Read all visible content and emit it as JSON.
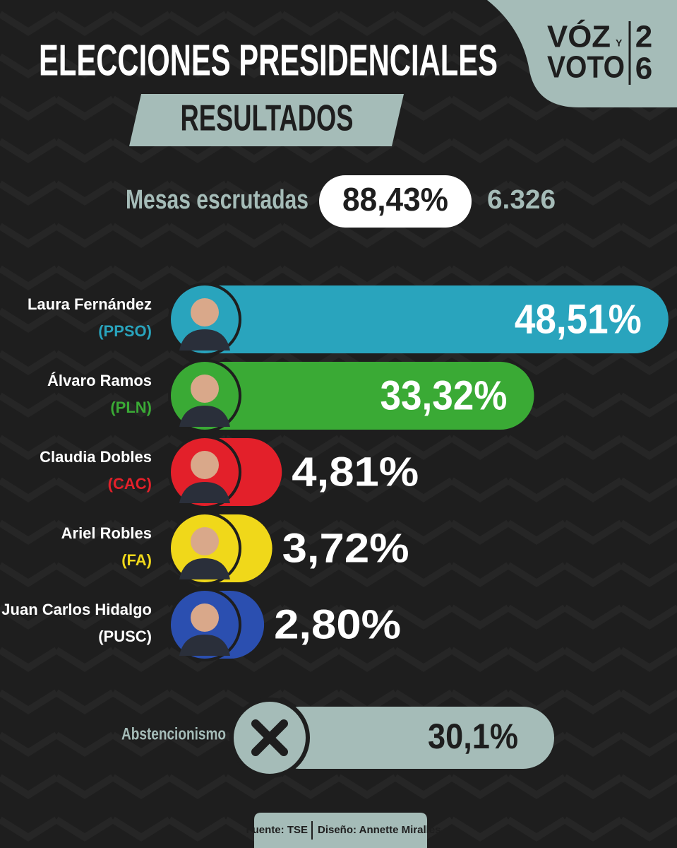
{
  "header": {
    "title": "ELECCIONES PRESIDENCIALES",
    "subtitle": "RESULTADOS"
  },
  "logo": {
    "word1": "VÓZ",
    "joiner": "Y",
    "word2": "VOTO",
    "digit1": "2",
    "digit2": "6"
  },
  "mesas": {
    "label": "Mesas escrutadas",
    "percent": "88,43%",
    "count": "6.326"
  },
  "chart_data": {
    "type": "bar",
    "orientation": "horizontal",
    "categories": [
      "Laura Fernández",
      "Álvaro Ramos",
      "Claudia Dobles",
      "Ariel Robles",
      "Juan Carlos Hidalgo"
    ],
    "parties": [
      "(PPSO)",
      "(PLN)",
      "(CAC)",
      "(FA)",
      "(PUSC)"
    ],
    "colors": [
      "#29a4bd",
      "#3aaa35",
      "#e3202a",
      "#f0d81a",
      "#2b4fb0"
    ],
    "values": [
      48.51,
      33.32,
      4.81,
      3.72,
      2.8
    ],
    "value_labels": [
      "48,51%",
      "33,32%",
      "4,81%",
      "3,72%",
      "2,80%"
    ]
  },
  "abstention": {
    "label": "Abstencionismo",
    "value": "30,1%"
  },
  "footer": {
    "source": "Fuente: TSE",
    "design": "Diseño: Annette Miralles"
  }
}
